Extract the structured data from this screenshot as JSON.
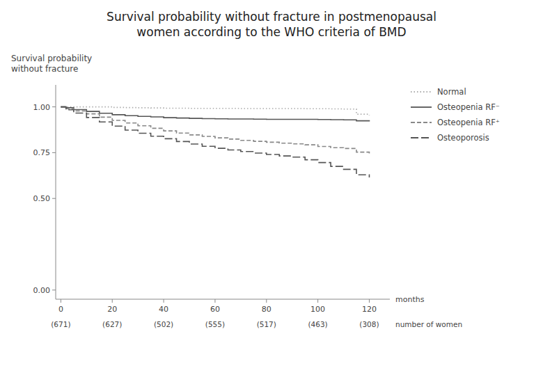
{
  "chart_data": {
    "type": "step",
    "title": "Survival probability without fracture in postmenopausal\nwomen according to the WHO criteria of BMD",
    "y_label": "Survival probability\nwithout fracture",
    "x_label": "months",
    "x": [
      0,
      2,
      5,
      10,
      15,
      20,
      25,
      30,
      35,
      40,
      45,
      50,
      55,
      60,
      65,
      70,
      75,
      80,
      85,
      90,
      95,
      100,
      105,
      110,
      115,
      120
    ],
    "series": [
      {
        "name": "Normal",
        "color": "#aaaaaa",
        "line_style": "dotted",
        "values": [
          1.0,
          1.0,
          1.0,
          1.0,
          1.0,
          0.997,
          0.996,
          0.995,
          0.994,
          0.993,
          0.993,
          0.992,
          0.992,
          0.992,
          0.992,
          0.991,
          0.991,
          0.991,
          0.991,
          0.991,
          0.99,
          0.99,
          0.989,
          0.988,
          0.96,
          0.955
        ]
      },
      {
        "name": "Osteopenia RF⁻",
        "color": "#555555",
        "line_style": "solid",
        "values": [
          1.0,
          0.995,
          0.985,
          0.975,
          0.965,
          0.957,
          0.952,
          0.948,
          0.945,
          0.941,
          0.939,
          0.937,
          0.936,
          0.935,
          0.934,
          0.934,
          0.933,
          0.932,
          0.932,
          0.932,
          0.932,
          0.931,
          0.93,
          0.929,
          0.924,
          0.921
        ]
      },
      {
        "name": "Osteopenia RF⁺",
        "color": "#888888",
        "line_style": "dashed",
        "values": [
          1.0,
          0.99,
          0.978,
          0.962,
          0.944,
          0.926,
          0.912,
          0.897,
          0.883,
          0.869,
          0.857,
          0.847,
          0.839,
          0.831,
          0.824,
          0.817,
          0.812,
          0.807,
          0.802,
          0.798,
          0.793,
          0.784,
          0.777,
          0.773,
          0.753,
          0.743
        ]
      },
      {
        "name": "Osteoporosis",
        "color": "#555555",
        "line_style": "longdash",
        "values": [
          1.0,
          0.984,
          0.966,
          0.942,
          0.918,
          0.895,
          0.873,
          0.856,
          0.84,
          0.826,
          0.811,
          0.797,
          0.785,
          0.774,
          0.765,
          0.756,
          0.748,
          0.74,
          0.732,
          0.726,
          0.711,
          0.696,
          0.675,
          0.659,
          0.629,
          0.615
        ]
      }
    ],
    "xlim": [
      -2,
      128
    ],
    "ylim": [
      -0.05,
      1.12
    ],
    "xticks": [
      0,
      20,
      40,
      60,
      80,
      100,
      120
    ],
    "yticks": [
      {
        "value": 0.0,
        "label": "0.00"
      },
      {
        "value": 0.5,
        "label": "0.50"
      },
      {
        "value": 0.75,
        "label": "0.75"
      },
      {
        "value": 1.0,
        "label": "1.00"
      }
    ],
    "annotations": {
      "label": "number of women",
      "x": [
        0,
        20,
        40,
        60,
        80,
        100,
        120
      ],
      "texts": [
        "(671)",
        "(627)",
        "(502)",
        "(555)",
        "(517)",
        "(463)",
        "(308)"
      ]
    },
    "legend": "right",
    "grid": false
  }
}
